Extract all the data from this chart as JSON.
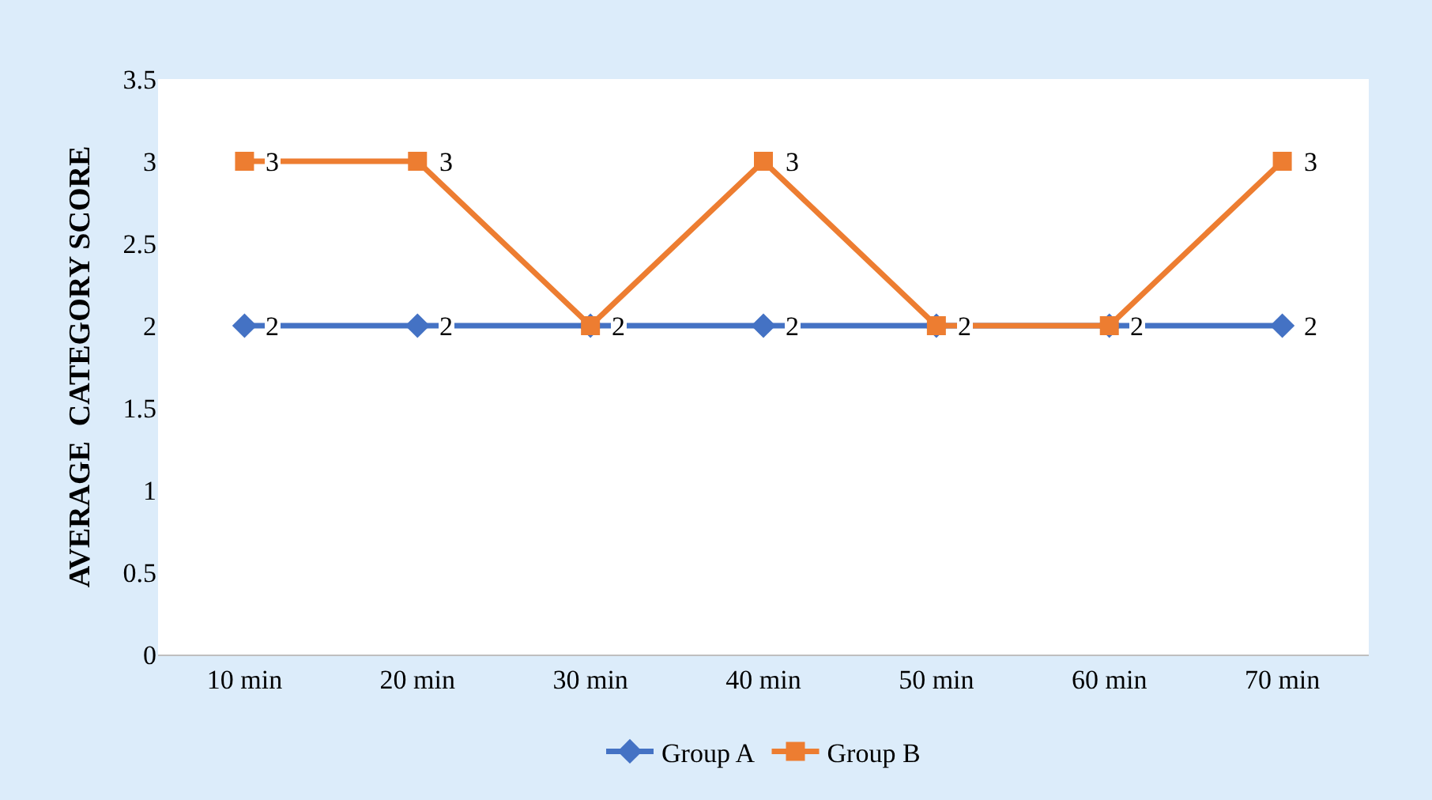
{
  "chart_data": {
    "type": "line",
    "ylabel": "AVERAGE  CATEGORY SCORE",
    "categories": [
      "10 min",
      "20 min",
      "30 min",
      "40 min",
      "50 min",
      "60 min",
      "70 min"
    ],
    "series": [
      {
        "name": "Group A",
        "color": "#4472c4",
        "marker": "diamond",
        "values": [
          2,
          2,
          2,
          2,
          2,
          2,
          2
        ],
        "value_labels": [
          "2",
          "2",
          "2",
          "2",
          "2",
          "2",
          "2"
        ]
      },
      {
        "name": "Group B",
        "color": "#ed7d31",
        "marker": "square",
        "values": [
          3,
          3,
          2,
          3,
          2,
          2,
          3
        ],
        "value_labels": [
          "3",
          "3",
          null,
          "3",
          null,
          null,
          "3"
        ]
      }
    ],
    "ylim": [
      0,
      3.5
    ],
    "yticks": [
      0,
      0.5,
      1,
      1.5,
      2,
      2.5,
      3,
      3.5
    ],
    "legend": "bottom",
    "line_style": "solid"
  }
}
